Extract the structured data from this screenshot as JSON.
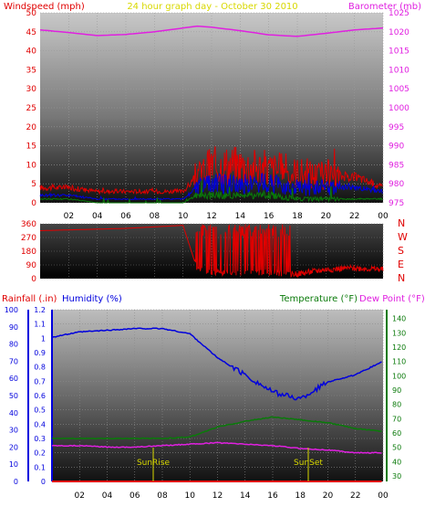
{
  "header": {
    "left_label": "Windspeed (mph)",
    "center_title": "24 hour graph day - October 30 2010",
    "right_label": "Barometer (mb)"
  },
  "colors": {
    "red": "#e00000",
    "magenta": "#e020e0",
    "blue": "#0000dd",
    "green": "#0a7a0a",
    "yellow": "#d8d800",
    "lightblue": "#4060ff"
  },
  "top_panel": {
    "left_ticks": [
      "0",
      "5",
      "10",
      "15",
      "20",
      "25",
      "30",
      "35",
      "40",
      "45",
      "50"
    ],
    "right_ticks": [
      "975",
      "980",
      "985",
      "990",
      "995",
      "1000",
      "1005",
      "1010",
      "1015",
      "1020",
      "1025"
    ],
    "x_ticks": [
      "02",
      "04",
      "06",
      "08",
      "10",
      "12",
      "14",
      "16",
      "18",
      "20",
      "22",
      "00"
    ]
  },
  "direction_panel": {
    "left_ticks": [
      "0",
      "90",
      "180",
      "270",
      "360"
    ],
    "right_labels": [
      "N",
      "W",
      "S",
      "E",
      "N"
    ]
  },
  "bottom_panel": {
    "rain_label": "Rainfall (.in)",
    "humidity_label": "Humidity (%)",
    "temperature_label": "Temperature (°F)",
    "dewpoint_label": "Dew Point (°F)",
    "humidity_ticks": [
      "0",
      "10",
      "20",
      "30",
      "40",
      "50",
      "60",
      "70",
      "80",
      "90",
      "100"
    ],
    "rain_ticks": [
      "0",
      "0.1",
      "0.2",
      "0.3",
      "0.4",
      "0.5",
      "0.6",
      "0.7",
      "0.8",
      "0.9",
      "1",
      "1.1",
      "1.2"
    ],
    "temp_ticks": [
      "30",
      "40",
      "50",
      "60",
      "70",
      "80",
      "90",
      "100",
      "110",
      "120",
      "130",
      "140"
    ],
    "x_ticks": [
      "02",
      "04",
      "06",
      "08",
      "10",
      "12",
      "14",
      "16",
      "18",
      "20",
      "22",
      "00"
    ],
    "sunrise_label": "SunRise",
    "sunset_label": "SunSet"
  },
  "chart_data": [
    {
      "type": "line",
      "title": "24 hour graph day - October 30 2010",
      "xlabel": "",
      "ylabel": "Windspeed (mph)",
      "y2label": "Barometer (mb)",
      "ylim": [
        0,
        50
      ],
      "y2lim": [
        975,
        1025
      ],
      "x": [
        "00",
        "02",
        "04",
        "06",
        "08",
        "10",
        "11",
        "12",
        "14",
        "16",
        "18",
        "20",
        "22",
        "00"
      ],
      "series": [
        {
          "axis": "right",
          "values": [
            1020.5,
            1019.8,
            1019.0,
            1019.3,
            1020.0,
            1021.0,
            1021.5,
            1021.2,
            1020.3,
            1019.2,
            1018.8,
            1019.6,
            1020.5,
            1021.0
          ]
        },
        {
          "axis": "left",
          "values": [
            4,
            4,
            3,
            3,
            3,
            3,
            7,
            10,
            10,
            9,
            8,
            7,
            7,
            4
          ]
        },
        {
          "axis": "left",
          "values": [
            2,
            2,
            1,
            1,
            1,
            1,
            4,
            5,
            5,
            5,
            4,
            4,
            4,
            3
          ]
        },
        {
          "axis": "left",
          "values": [
            1,
            1,
            0,
            0,
            0,
            0,
            2,
            2,
            2,
            2,
            1,
            1,
            1,
            1
          ]
        }
      ]
    },
    {
      "type": "line",
      "ylabel": "",
      "ylim": [
        0,
        360
      ],
      "x": [
        "00",
        "02",
        "04",
        "06",
        "08",
        "10",
        "11",
        "12",
        "14",
        "16",
        "18",
        "20",
        "22",
        "00"
      ],
      "series": [
        {
          "values": [
            315,
            320,
            325,
            330,
            340,
            350,
            60,
            40,
            40,
            40,
            30,
            60,
            70,
            60
          ]
        }
      ]
    },
    {
      "type": "line",
      "xlabel": "",
      "ylim": [
        0,
        100
      ],
      "y2lim": [
        30,
        150
      ],
      "y3lim": [
        0,
        1.2
      ],
      "x": [
        "00",
        "02",
        "04",
        "06",
        "08",
        "10",
        "12",
        "14",
        "16",
        "18",
        "20",
        "22",
        "00"
      ],
      "series": [
        {
          "name": "Humidity (%)",
          "axis": "humidity",
          "values": [
            84,
            87,
            88,
            89,
            89,
            86,
            72,
            62,
            52,
            48,
            58,
            62,
            70
          ]
        },
        {
          "name": "Temperature (°F)",
          "axis": "temp",
          "values": [
            60,
            60,
            60,
            60,
            60,
            61,
            68,
            72,
            75,
            73,
            71,
            67,
            65
          ]
        },
        {
          "name": "Dew Point (°F)",
          "axis": "temp",
          "values": [
            55,
            55,
            54,
            54,
            55,
            56,
            57,
            56,
            55,
            53,
            52,
            50,
            50
          ]
        },
        {
          "name": "Rainfall (.in)",
          "axis": "rain",
          "values": [
            0,
            0,
            0,
            0,
            0,
            0,
            0,
            0,
            0,
            0,
            0,
            0,
            0
          ]
        }
      ]
    }
  ]
}
